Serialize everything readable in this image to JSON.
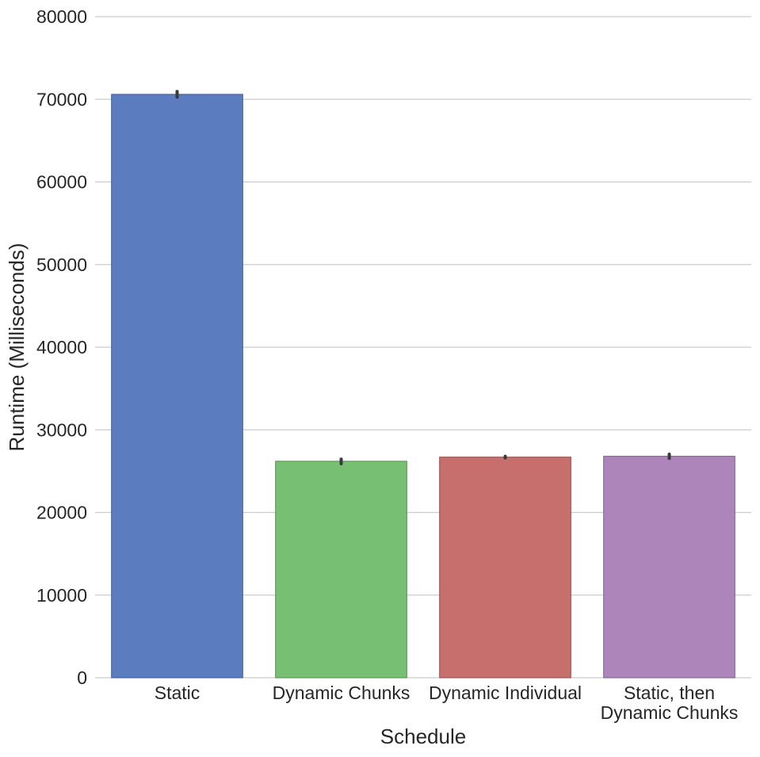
{
  "chart_data": {
    "type": "bar",
    "title": "",
    "xlabel": "Schedule",
    "ylabel": "Runtime (Milliseconds)",
    "ylim": [
      0,
      80000
    ],
    "yticks": [
      0,
      10000,
      20000,
      30000,
      40000,
      50000,
      60000,
      70000,
      80000
    ],
    "grid": true,
    "categories": [
      [
        "Static"
      ],
      [
        "Dynamic Chunks"
      ],
      [
        "Dynamic Individual"
      ],
      [
        "Static, then",
        "Dynamic Chunks"
      ]
    ],
    "values": [
      70600,
      26200,
      26700,
      26800
    ],
    "error": [
      [
        70250,
        70950
      ],
      [
        25900,
        26450
      ],
      [
        26600,
        26800
      ],
      [
        26550,
        27050
      ]
    ],
    "colors": [
      "#5b7dbf",
      "#77bf73",
      "#c66f6d",
      "#ad85bb"
    ],
    "edge_colors": [
      "#3c5a96",
      "#4f8f4e",
      "#924a49",
      "#7d5b8a"
    ]
  }
}
